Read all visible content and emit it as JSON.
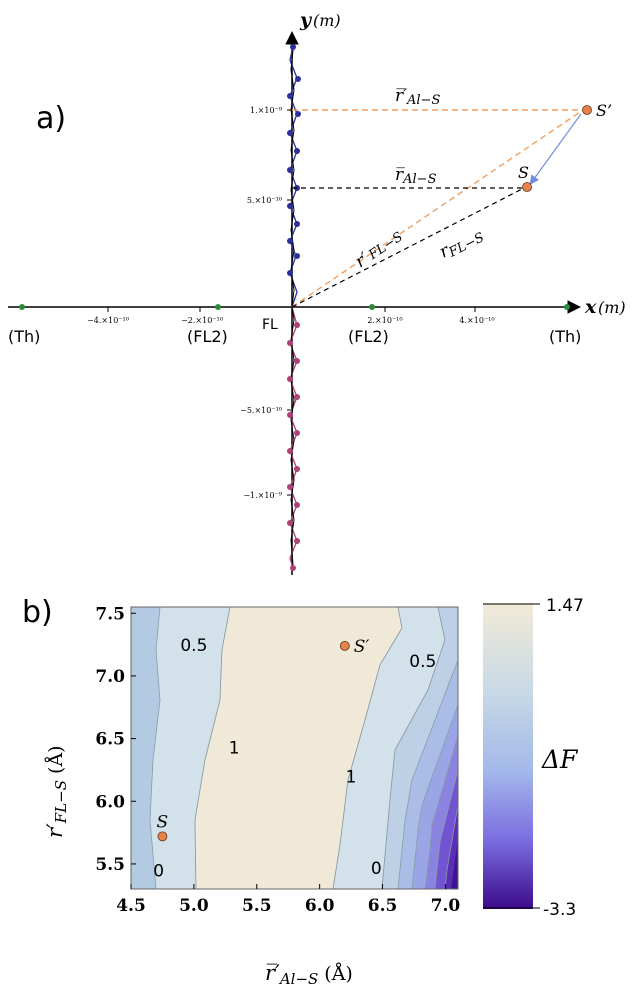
{
  "panel_a": {
    "label": "a)",
    "y_axis_label": "y",
    "y_axis_unit": "(m)",
    "x_axis_label": "x",
    "x_axis_unit": "(m)",
    "y_ticks": [
      "1.×10⁻⁹",
      "5.×10⁻¹⁰",
      "−5.×10⁻¹⁰",
      "−1.×10⁻⁹"
    ],
    "x_ticks": [
      "−4.×10⁻¹⁰",
      "−2.×10⁻¹⁰",
      "2.×10⁻¹⁰",
      "4.×10⁻¹⁰"
    ],
    "site_labels": {
      "th_left": "(Th)",
      "fl2_left": "(FL2)",
      "fl": "FL",
      "fl2_right": "(FL2)",
      "th_right": "(Th)"
    },
    "point_s": "S",
    "point_s_prime": "S’",
    "r_al_s_prime": "r̅′",
    "r_al_s_prime_sub": "Al−S",
    "r_al_s": "r̅",
    "r_al_s_sub": "Al−S",
    "r_fl_s_prime": "r′",
    "r_fl_s_prime_sub": "FL−S",
    "r_fl_s": "r",
    "r_fl_s_sub": "FL−S",
    "colors": {
      "chain_upper": "#2b2f9b",
      "chain_lower": "#b0407a",
      "xaxis_atoms": "#2e8b3c",
      "orange": "#f0a060",
      "point": "#e8824a",
      "arrow": "#6f8fd8"
    }
  },
  "chart_data": {
    "type": "heatmap",
    "label": "b)",
    "xlabel_main": "r̅′",
    "xlabel_sub": "Al−S",
    "xlabel_unit": "(Å)",
    "ylabel_main": "r′",
    "ylabel_sub": "FL−S",
    "ylabel_unit": "(Å)",
    "xlim": [
      4.5,
      7.1
    ],
    "ylim": [
      5.3,
      7.55
    ],
    "x_ticks": [
      "4.5",
      "5.0",
      "5.5",
      "6.0",
      "6.5",
      "7.0"
    ],
    "y_ticks": [
      "5.5",
      "6.0",
      "6.5",
      "7.0",
      "7.5"
    ],
    "contour_labels": [
      {
        "text": "0.5",
        "x": 5.0,
        "y": 7.2
      },
      {
        "text": "0.5",
        "x": 6.82,
        "y": 7.07
      },
      {
        "text": "1",
        "x": 5.32,
        "y": 6.38
      },
      {
        "text": "1",
        "x": 6.25,
        "y": 6.15
      },
      {
        "text": "0",
        "x": 4.72,
        "y": 5.4
      },
      {
        "text": "0",
        "x": 6.45,
        "y": 5.42
      }
    ],
    "points": [
      {
        "name": "S",
        "x": 4.75,
        "y": 5.72
      },
      {
        "name": "S′",
        "x": 6.2,
        "y": 7.24
      }
    ],
    "colorbar": {
      "label": "ΔF",
      "max": "1.47",
      "min": "-3.3",
      "colors": [
        "#f2ead8",
        "#c6d8e6",
        "#a3b8ea",
        "#7a6be0",
        "#3b0a8a"
      ]
    }
  }
}
